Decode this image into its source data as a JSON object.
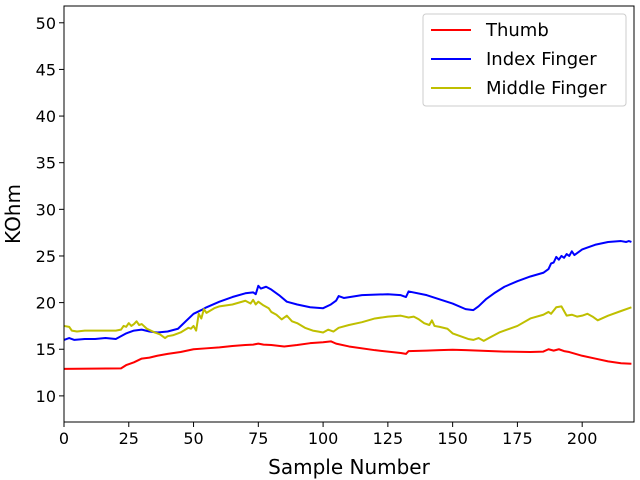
{
  "chart_data": {
    "type": "line",
    "title": "",
    "xlabel": "Sample Number",
    "ylabel": "KOhm",
    "xlim": [
      0,
      220
    ],
    "ylim": [
      7.2,
      51.8
    ],
    "xticks": [
      0,
      25,
      50,
      75,
      100,
      125,
      150,
      175,
      200
    ],
    "yticks": [
      10,
      15,
      20,
      25,
      30,
      35,
      40,
      45,
      50
    ],
    "grid": false,
    "legend": "top-right",
    "series": [
      {
        "name": "Thumb",
        "color": "#ff0000",
        "x": [
          0,
          22,
          24,
          27,
          30,
          33,
          36,
          40,
          45,
          50,
          55,
          60,
          65,
          70,
          73,
          75,
          77,
          80,
          85,
          90,
          95,
          100,
          103,
          105,
          110,
          120,
          130,
          132,
          133,
          140,
          145,
          150,
          155,
          160,
          170,
          180,
          185,
          187,
          189,
          191,
          193,
          195,
          200,
          205,
          210,
          215,
          219
        ],
        "y": [
          12.9,
          12.95,
          13.3,
          13.6,
          14.0,
          14.1,
          14.3,
          14.5,
          14.7,
          15.0,
          15.1,
          15.2,
          15.35,
          15.45,
          15.5,
          15.6,
          15.5,
          15.45,
          15.3,
          15.45,
          15.65,
          15.75,
          15.85,
          15.6,
          15.3,
          14.9,
          14.6,
          14.5,
          14.8,
          14.85,
          14.9,
          14.95,
          14.9,
          14.85,
          14.75,
          14.7,
          14.75,
          15.0,
          14.85,
          15.0,
          14.8,
          14.7,
          14.3,
          14.0,
          13.7,
          13.5,
          13.45
        ]
      },
      {
        "name": "Index Finger",
        "color": "#0000ff",
        "x": [
          0,
          2,
          4,
          8,
          12,
          16,
          20,
          24,
          27,
          30,
          33,
          36,
          40,
          44,
          47,
          50,
          53,
          55,
          60,
          65,
          70,
          73,
          74,
          75,
          76,
          78,
          80,
          83,
          86,
          90,
          95,
          100,
          103,
          105,
          106,
          108,
          115,
          125,
          130,
          132,
          133,
          140,
          150,
          155,
          158,
          160,
          163,
          166,
          170,
          175,
          180,
          185,
          187,
          188,
          189,
          190,
          191,
          192,
          193,
          194,
          195,
          196,
          197,
          198,
          200,
          202,
          205,
          210,
          215,
          217,
          218,
          219
        ],
        "y": [
          16.0,
          16.2,
          16.0,
          16.1,
          16.1,
          16.2,
          16.1,
          16.7,
          17.0,
          17.1,
          16.9,
          16.8,
          16.9,
          17.2,
          18.0,
          18.8,
          19.2,
          19.5,
          20.1,
          20.6,
          21.0,
          21.1,
          20.9,
          21.8,
          21.5,
          21.7,
          21.4,
          20.8,
          20.1,
          19.8,
          19.5,
          19.4,
          19.8,
          20.2,
          20.7,
          20.5,
          20.8,
          20.9,
          20.8,
          20.6,
          21.2,
          20.8,
          19.9,
          19.3,
          19.2,
          19.6,
          20.4,
          21.0,
          21.7,
          22.3,
          22.8,
          23.2,
          23.6,
          24.2,
          24.3,
          24.9,
          24.6,
          25.0,
          24.8,
          25.2,
          25.0,
          25.5,
          25.1,
          25.3,
          25.7,
          25.9,
          26.2,
          26.5,
          26.6,
          26.5,
          26.6,
          26.5
        ]
      },
      {
        "name": "Middle Finger",
        "color": "#bfbf00",
        "x": [
          0,
          2,
          3,
          5,
          8,
          12,
          16,
          20,
          22,
          23,
          24,
          25,
          26,
          27,
          28,
          29,
          30,
          32,
          35,
          37,
          39,
          40,
          42,
          45,
          48,
          49,
          50,
          51,
          52,
          53,
          54,
          55,
          58,
          60,
          65,
          70,
          72,
          73,
          74,
          75,
          77,
          79,
          80,
          82,
          84,
          86,
          88,
          90,
          93,
          96,
          98,
          100,
          102,
          104,
          106,
          110,
          115,
          120,
          125,
          130,
          133,
          135,
          137,
          139,
          141,
          142,
          143,
          145,
          148,
          150,
          153,
          156,
          158,
          160,
          162,
          164,
          166,
          168,
          170,
          175,
          180,
          185,
          187,
          188,
          190,
          192,
          194,
          196,
          198,
          200,
          202,
          204,
          206,
          210,
          215,
          219
        ],
        "y": [
          17.5,
          17.4,
          17.0,
          16.9,
          17.0,
          17.0,
          17.0,
          17.0,
          17.1,
          17.5,
          17.4,
          17.8,
          17.5,
          17.7,
          18.0,
          17.6,
          17.7,
          17.2,
          16.8,
          16.6,
          16.2,
          16.4,
          16.5,
          16.8,
          17.3,
          17.2,
          17.5,
          17.0,
          18.8,
          18.3,
          19.3,
          18.9,
          19.4,
          19.6,
          19.8,
          20.2,
          19.9,
          20.3,
          19.8,
          20.1,
          19.7,
          19.4,
          19.0,
          18.7,
          18.2,
          18.6,
          18.0,
          17.8,
          17.3,
          17.0,
          16.9,
          16.8,
          17.1,
          16.9,
          17.3,
          17.6,
          17.9,
          18.3,
          18.5,
          18.6,
          18.4,
          18.5,
          18.2,
          17.8,
          17.6,
          18.1,
          17.5,
          17.4,
          17.2,
          16.7,
          16.4,
          16.1,
          16.0,
          16.2,
          15.9,
          16.2,
          16.5,
          16.8,
          17.0,
          17.5,
          18.3,
          18.7,
          19.0,
          18.8,
          19.5,
          19.6,
          18.6,
          18.7,
          18.5,
          18.6,
          18.8,
          18.5,
          18.1,
          18.6,
          19.1,
          19.5
        ]
      }
    ]
  }
}
